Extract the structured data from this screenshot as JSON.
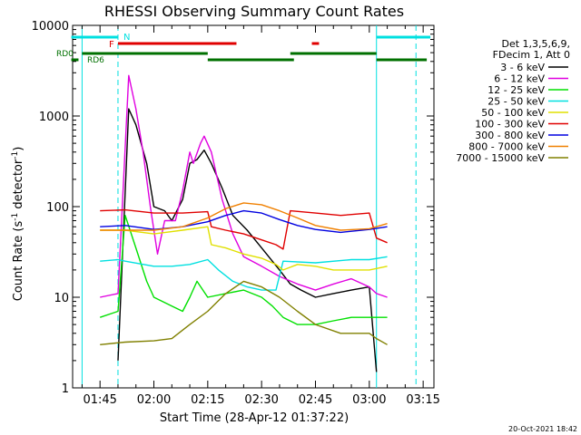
{
  "chart_data": {
    "type": "line",
    "title": "RHESSI Observing Summary Count Rates",
    "xlabel": "Start Time (28-Apr-12 01:37:22)",
    "ylabel": "Count Rate (s",
    "ylabel_sup": "-1",
    "ylabel_tail": " detector",
    "ylabel_sup2": "-1",
    "ylabel_end": ")",
    "y_scale": "log",
    "ylim": [
      1,
      10000
    ],
    "xlim": [
      "01:37:22",
      "03:18:00"
    ],
    "x_ticks": [
      "01:45",
      "02:00",
      "02:15",
      "02:30",
      "02:45",
      "03:00",
      "03:15"
    ],
    "y_ticks": [
      "1",
      "10",
      "100",
      "1000",
      "10000"
    ],
    "legend_header": [
      "Det 1,3,5,6,9,",
      "FDecim 1, Att 0"
    ],
    "legend_position": "right",
    "timestamp": "20-Oct-2021 18:42",
    "flag_labels": {
      "night": "N",
      "flare": "F",
      "rd0": "RD0",
      "rd6": "RD6"
    },
    "flag_colors": {
      "night": "#00e0e0",
      "flare": "#e00000",
      "rd": "#007000"
    },
    "night_marks": [
      "01:40",
      "01:50",
      "03:02",
      "03:13"
    ],
    "series": [
      {
        "name": "3 - 6 keV",
        "color": "#000000",
        "points": [
          [
            "01:50",
            "2"
          ],
          [
            "01:53",
            "1200"
          ],
          [
            "01:55",
            "800"
          ],
          [
            "01:58",
            "300"
          ],
          [
            "02:00",
            "100"
          ],
          [
            "02:03",
            "90"
          ],
          [
            "02:05",
            "70"
          ],
          [
            "02:08",
            "120"
          ],
          [
            "02:10",
            "300"
          ],
          [
            "02:12",
            "330"
          ],
          [
            "02:14",
            "420"
          ],
          [
            "02:16",
            "300"
          ],
          [
            "02:19",
            "160"
          ],
          [
            "02:22",
            "80"
          ],
          [
            "02:26",
            "55"
          ],
          [
            "02:30",
            "35"
          ],
          [
            "02:35",
            "20"
          ],
          [
            "02:38",
            "14"
          ],
          [
            "02:41",
            "12"
          ],
          [
            "02:45",
            "10"
          ],
          [
            "02:50",
            "11"
          ],
          [
            "02:55",
            "12"
          ],
          [
            "03:00",
            "13"
          ],
          [
            "03:02",
            "1.5"
          ]
        ]
      },
      {
        "name": "6 - 12 keV",
        "color": "#e000e0",
        "points": [
          [
            "01:45",
            "10"
          ],
          [
            "01:50",
            "11"
          ],
          [
            "01:53",
            "2800"
          ],
          [
            "01:55",
            "1200"
          ],
          [
            "01:57",
            "400"
          ],
          [
            "01:59",
            "100"
          ],
          [
            "02:01",
            "30"
          ],
          [
            "02:03",
            "70"
          ],
          [
            "02:06",
            "70"
          ],
          [
            "02:08",
            "150"
          ],
          [
            "02:10",
            "400"
          ],
          [
            "02:11",
            "300"
          ],
          [
            "02:13",
            "500"
          ],
          [
            "02:14",
            "600"
          ],
          [
            "02:16",
            "400"
          ],
          [
            "02:19",
            "120"
          ],
          [
            "02:22",
            "50"
          ],
          [
            "02:25",
            "28"
          ],
          [
            "02:30",
            "22"
          ],
          [
            "02:35",
            "17"
          ],
          [
            "02:40",
            "14"
          ],
          [
            "02:45",
            "12"
          ],
          [
            "02:50",
            "14"
          ],
          [
            "02:55",
            "16"
          ],
          [
            "03:00",
            "13"
          ],
          [
            "03:02",
            "11"
          ],
          [
            "03:05",
            "10"
          ]
        ]
      },
      {
        "name": "12 - 25 keV",
        "color": "#00e000",
        "points": [
          [
            "01:45",
            "6"
          ],
          [
            "01:50",
            "7"
          ],
          [
            "01:52",
            "80"
          ],
          [
            "01:55",
            "35"
          ],
          [
            "01:58",
            "15"
          ],
          [
            "02:00",
            "10"
          ],
          [
            "02:05",
            "8"
          ],
          [
            "02:08",
            "7"
          ],
          [
            "02:10",
            "10"
          ],
          [
            "02:12",
            "15"
          ],
          [
            "02:15",
            "10"
          ],
          [
            "02:20",
            "11"
          ],
          [
            "02:25",
            "12"
          ],
          [
            "02:30",
            "10"
          ],
          [
            "02:33",
            "8"
          ],
          [
            "02:36",
            "6"
          ],
          [
            "02:40",
            "5"
          ],
          [
            "02:45",
            "5"
          ],
          [
            "02:50",
            "5.5"
          ],
          [
            "02:55",
            "6"
          ],
          [
            "03:00",
            "6"
          ],
          [
            "03:05",
            "6"
          ]
        ]
      },
      {
        "name": "25 - 50 keV",
        "color": "#00e0e0",
        "points": [
          [
            "01:45",
            "25"
          ],
          [
            "01:50",
            "26"
          ],
          [
            "01:52",
            "25"
          ],
          [
            "02:00",
            "22"
          ],
          [
            "02:05",
            "22"
          ],
          [
            "02:10",
            "23"
          ],
          [
            "02:15",
            "26"
          ],
          [
            "02:18",
            "20"
          ],
          [
            "02:22",
            "15"
          ],
          [
            "02:26",
            "13"
          ],
          [
            "02:30",
            "12"
          ],
          [
            "02:34",
            "12"
          ],
          [
            "02:36",
            "25"
          ],
          [
            "02:45",
            "24"
          ],
          [
            "02:55",
            "26"
          ],
          [
            "03:00",
            "26"
          ],
          [
            "03:05",
            "28"
          ]
        ]
      },
      {
        "name": "50 - 100 keV",
        "color": "#e0e000",
        "points": [
          [
            "01:45",
            "55"
          ],
          [
            "01:52",
            "55"
          ],
          [
            "02:00",
            "50"
          ],
          [
            "02:08",
            "55"
          ],
          [
            "02:15",
            "60"
          ],
          [
            "02:16",
            "38"
          ],
          [
            "02:20",
            "35"
          ],
          [
            "02:25",
            "30"
          ],
          [
            "02:30",
            "27"
          ],
          [
            "02:34",
            "23"
          ],
          [
            "02:36",
            "20"
          ],
          [
            "02:40",
            "23"
          ],
          [
            "02:45",
            "22"
          ],
          [
            "02:50",
            "20"
          ],
          [
            "02:55",
            "20"
          ],
          [
            "03:00",
            "20"
          ],
          [
            "03:05",
            "22"
          ]
        ]
      },
      {
        "name": "100 - 300 keV",
        "color": "#e00000",
        "points": [
          [
            "01:45",
            "90"
          ],
          [
            "01:52",
            "92"
          ],
          [
            "02:00",
            "85"
          ],
          [
            "02:08",
            "85"
          ],
          [
            "02:15",
            "88"
          ],
          [
            "02:16",
            "60"
          ],
          [
            "02:20",
            "55"
          ],
          [
            "02:25",
            "50"
          ],
          [
            "02:30",
            "43"
          ],
          [
            "02:34",
            "38"
          ],
          [
            "02:36",
            "34"
          ],
          [
            "02:38",
            "90"
          ],
          [
            "02:45",
            "85"
          ],
          [
            "02:52",
            "80"
          ],
          [
            "03:00",
            "85"
          ],
          [
            "03:02",
            "45"
          ],
          [
            "03:05",
            "40"
          ]
        ]
      },
      {
        "name": "300 - 800 keV",
        "color": "#0000e0",
        "points": [
          [
            "01:45",
            "60"
          ],
          [
            "01:52",
            "62"
          ],
          [
            "02:00",
            "56"
          ],
          [
            "02:08",
            "60"
          ],
          [
            "02:15",
            "68"
          ],
          [
            "02:20",
            "80"
          ],
          [
            "02:25",
            "90"
          ],
          [
            "02:30",
            "85"
          ],
          [
            "02:35",
            "72"
          ],
          [
            "02:40",
            "62"
          ],
          [
            "02:45",
            "56"
          ],
          [
            "02:52",
            "52"
          ],
          [
            "03:00",
            "56"
          ],
          [
            "03:05",
            "60"
          ]
        ]
      },
      {
        "name": "800 - 7000 keV",
        "color": "#f08000",
        "points": [
          [
            "01:45",
            "55"
          ],
          [
            "01:52",
            "55"
          ],
          [
            "02:00",
            "55"
          ],
          [
            "02:08",
            "60"
          ],
          [
            "02:15",
            "75"
          ],
          [
            "02:20",
            "95"
          ],
          [
            "02:25",
            "110"
          ],
          [
            "02:30",
            "105"
          ],
          [
            "02:35",
            "90"
          ],
          [
            "02:40",
            "75"
          ],
          [
            "02:45",
            "62"
          ],
          [
            "02:52",
            "55"
          ],
          [
            "03:00",
            "57"
          ],
          [
            "03:05",
            "65"
          ]
        ]
      },
      {
        "name": "7000 - 15000 keV",
        "color": "#808000",
        "points": [
          [
            "01:45",
            "3"
          ],
          [
            "01:52",
            "3.2"
          ],
          [
            "02:00",
            "3.3"
          ],
          [
            "02:05",
            "3.5"
          ],
          [
            "02:10",
            "5"
          ],
          [
            "02:15",
            "7"
          ],
          [
            "02:20",
            "11"
          ],
          [
            "02:25",
            "15"
          ],
          [
            "02:30",
            "13"
          ],
          [
            "02:35",
            "10"
          ],
          [
            "02:40",
            "7"
          ],
          [
            "02:45",
            "5"
          ],
          [
            "02:52",
            "4"
          ],
          [
            "03:00",
            "4"
          ],
          [
            "03:02",
            "3.5"
          ],
          [
            "03:05",
            "3"
          ]
        ]
      }
    ],
    "flag_segments": {
      "night_bars": [
        [
          "01:37",
          "01:50"
        ],
        [
          "03:02",
          "03:17"
        ]
      ],
      "flare_bars": [
        [
          "01:50",
          "02:23"
        ],
        [
          "02:44",
          "02:46"
        ]
      ],
      "rd0_bars": [
        [
          "01:40",
          "02:15"
        ],
        [
          "02:38",
          "03:02"
        ]
      ],
      "rd6_bars": [
        [
          "01:37",
          "01:39"
        ],
        [
          "02:15",
          "02:39"
        ],
        [
          "03:02",
          "03:16"
        ]
      ]
    }
  }
}
